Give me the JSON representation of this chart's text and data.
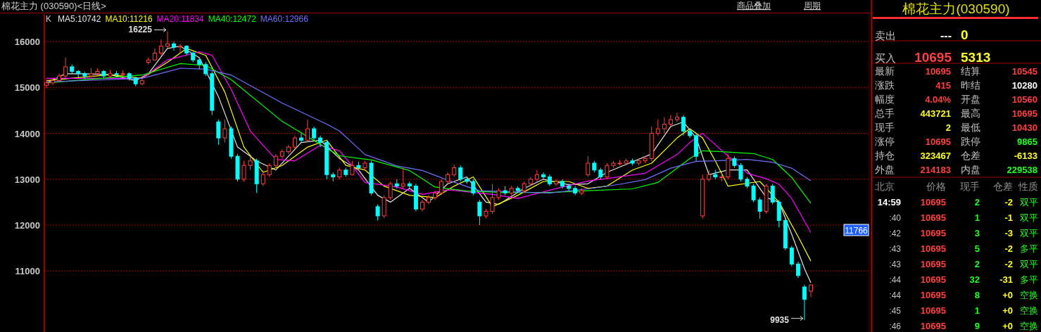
{
  "chart_data": [
    {
      "type": "candlestick",
      "title": "棉花主力 (030590)<日线>",
      "legend_title": "K",
      "legend": "top left",
      "grid": "y",
      "tick_labels": "y",
      "ylim": [
        9700,
        16600
      ],
      "yticks": [
        11000,
        12000,
        13000,
        14000,
        15000,
        16000
      ],
      "categories": [
        null,
        null,
        null,
        null,
        null,
        null,
        null,
        null,
        null,
        null,
        null,
        null,
        null,
        null,
        null,
        null,
        null,
        null,
        null,
        null,
        null,
        null,
        null,
        null,
        null,
        null,
        null,
        null,
        null,
        null,
        null,
        null,
        null,
        null,
        null,
        null,
        null,
        null,
        null,
        null,
        null,
        null,
        null,
        null,
        null,
        null,
        null,
        null,
        null,
        null,
        null,
        null,
        null,
        null,
        null,
        null,
        null,
        null,
        null,
        null,
        null,
        null,
        null,
        null,
        null,
        null,
        null,
        null,
        null,
        null,
        null,
        null,
        null,
        null,
        null,
        null,
        null,
        null,
        null,
        null,
        null,
        null,
        null,
        null,
        null,
        null,
        null,
        null,
        null,
        null,
        null,
        null,
        null,
        null,
        null,
        null,
        null,
        null,
        null,
        null,
        null,
        null,
        null,
        null,
        null,
        null,
        null,
        null,
        null,
        null,
        null,
        null,
        null,
        null,
        null,
        null,
        null,
        null,
        null,
        null,
        null
      ],
      "ohlc": [
        [
          15050,
          15180,
          14980,
          15100
        ],
        [
          15100,
          15200,
          15050,
          15150
        ],
        [
          15150,
          15300,
          15120,
          15250
        ],
        [
          15250,
          15650,
          15200,
          15450
        ],
        [
          15450,
          15500,
          15300,
          15350
        ],
        [
          15350,
          15380,
          15220,
          15300
        ],
        [
          15300,
          15340,
          15180,
          15250
        ],
        [
          15250,
          15420,
          15230,
          15300
        ],
        [
          15300,
          15420,
          15260,
          15350
        ],
        [
          15350,
          15380,
          15200,
          15250
        ],
        [
          15250,
          15380,
          15220,
          15300
        ],
        [
          15300,
          15360,
          15240,
          15280
        ],
        [
          15280,
          15370,
          15250,
          15300
        ],
        [
          15300,
          15330,
          15150,
          15200
        ],
        [
          15200,
          15230,
          15030,
          15080
        ],
        [
          15080,
          15200,
          15050,
          15150
        ],
        [
          15550,
          15650,
          15500,
          15600
        ],
        [
          15600,
          15850,
          15580,
          15750
        ],
        [
          15750,
          16050,
          15700,
          15900
        ],
        [
          15900,
          16225,
          15850,
          15950
        ],
        [
          15950,
          16000,
          15800,
          15880
        ],
        [
          15880,
          15950,
          15750,
          15900
        ],
        [
          15900,
          15920,
          15700,
          15750
        ],
        [
          15750,
          15780,
          15550,
          15600
        ],
        [
          15600,
          15650,
          15400,
          15500
        ],
        [
          15500,
          15550,
          15250,
          15300
        ],
        [
          15300,
          15350,
          14400,
          14500
        ],
        [
          14250,
          14300,
          13750,
          13900
        ],
        [
          13900,
          14300,
          13800,
          14100
        ],
        [
          14100,
          14150,
          13450,
          13500
        ],
        [
          13500,
          13550,
          12950,
          13000
        ],
        [
          13000,
          13400,
          12950,
          13300
        ],
        [
          13300,
          13500,
          13200,
          13400
        ],
        [
          13400,
          13450,
          12700,
          12900
        ],
        [
          12900,
          13200,
          12850,
          13100
        ],
        [
          13100,
          13350,
          13050,
          13300
        ],
        [
          13300,
          13550,
          13250,
          13500
        ],
        [
          13500,
          13650,
          13450,
          13600
        ],
        [
          13600,
          13750,
          13550,
          13700
        ],
        [
          13700,
          13950,
          13650,
          13900
        ],
        [
          13900,
          14000,
          13800,
          13850
        ],
        [
          13850,
          14300,
          13800,
          14100
        ],
        [
          14100,
          14150,
          13850,
          13900
        ],
        [
          13900,
          13950,
          13700,
          13800
        ],
        [
          13800,
          13850,
          13000,
          13100
        ],
        [
          13100,
          13150,
          12950,
          13050
        ],
        [
          13050,
          13250,
          13000,
          13200
        ],
        [
          13200,
          13250,
          13050,
          13100
        ],
        [
          13100,
          13400,
          13080,
          13300
        ],
        [
          13300,
          13380,
          13200,
          13250
        ],
        [
          13250,
          13400,
          13200,
          13350
        ],
        [
          13350,
          13400,
          12650,
          12700
        ],
        [
          12400,
          12450,
          12100,
          12200
        ],
        [
          12200,
          12650,
          12150,
          12600
        ],
        [
          12600,
          12950,
          12550,
          12900
        ],
        [
          12900,
          13000,
          12800,
          12850
        ],
        [
          12850,
          13250,
          12800,
          12900
        ],
        [
          12900,
          12950,
          12800,
          12850
        ],
        [
          12850,
          12900,
          12300,
          12350
        ],
        [
          12350,
          12550,
          12300,
          12500
        ],
        [
          12500,
          12650,
          12450,
          12600
        ],
        [
          12600,
          12750,
          12550,
          12700
        ],
        [
          12700,
          13000,
          12650,
          12950
        ],
        [
          12950,
          13150,
          12900,
          13100
        ],
        [
          13100,
          13320,
          13050,
          13250
        ],
        [
          13250,
          13300,
          12950,
          13000
        ],
        [
          13000,
          13050,
          12900,
          12950
        ],
        [
          12950,
          13000,
          12650,
          12700
        ],
        [
          12500,
          12550,
          12000,
          12200
        ],
        [
          12200,
          12350,
          12150,
          12300
        ],
        [
          12300,
          12900,
          12250,
          12600
        ],
        [
          12600,
          12800,
          12550,
          12750
        ],
        [
          12750,
          12850,
          12650,
          12700
        ],
        [
          12700,
          12850,
          12650,
          12800
        ],
        [
          12800,
          12850,
          12700,
          12750
        ],
        [
          12750,
          12950,
          12700,
          12900
        ],
        [
          12900,
          13050,
          12850,
          13000
        ],
        [
          13000,
          13200,
          12950,
          13100
        ],
        [
          13100,
          13150,
          13000,
          13050
        ],
        [
          13050,
          13100,
          12850,
          12900
        ],
        [
          12900,
          13000,
          12850,
          12950
        ],
        [
          12950,
          13000,
          12800,
          12850
        ],
        [
          12850,
          12900,
          12750,
          12800
        ],
        [
          12800,
          12850,
          12650,
          12700
        ],
        [
          12700,
          12800,
          12650,
          12750
        ],
        [
          13100,
          13500,
          13050,
          13350
        ],
        [
          13350,
          13400,
          13150,
          13200
        ],
        [
          13200,
          13250,
          13000,
          13050
        ],
        [
          13050,
          13350,
          13000,
          13300
        ],
        [
          13300,
          13400,
          13250,
          13350
        ],
        [
          13350,
          13420,
          13300,
          13350
        ],
        [
          13350,
          13450,
          13300,
          13400
        ],
        [
          13400,
          13450,
          13300,
          13350
        ],
        [
          13350,
          13450,
          13300,
          13400
        ],
        [
          13400,
          13500,
          13350,
          13450
        ],
        [
          13450,
          14150,
          13400,
          14000
        ],
        [
          14000,
          14300,
          13950,
          14100
        ],
        [
          14100,
          14350,
          14000,
          14200
        ],
        [
          14200,
          14400,
          14150,
          14300
        ],
        [
          14300,
          14450,
          14250,
          14350
        ],
        [
          14350,
          14400,
          13950,
          14050
        ],
        [
          14050,
          14100,
          13900,
          13950
        ],
        [
          13950,
          14000,
          13400,
          13500
        ],
        [
          12200,
          13100,
          12140,
          13000
        ],
        [
          13000,
          13200,
          12950,
          13100
        ],
        [
          13100,
          13200,
          13000,
          13050
        ],
        [
          13050,
          13150,
          12950,
          13050
        ],
        [
          13050,
          13550,
          13000,
          13450
        ],
        [
          13450,
          13500,
          13250,
          13300
        ],
        [
          13300,
          13350,
          12950,
          13000
        ],
        [
          13000,
          13050,
          12800,
          12850
        ],
        [
          12850,
          12900,
          12500,
          12550
        ],
        [
          12550,
          12600,
          12140,
          12300
        ],
        [
          12300,
          12900,
          12250,
          12850
        ],
        [
          12850,
          12900,
          12450,
          12500
        ],
        [
          12500,
          12550,
          11950,
          12100
        ],
        [
          12100,
          12150,
          11450,
          11500
        ],
        [
          11500,
          11550,
          11100,
          11150
        ],
        [
          11150,
          11200,
          10850,
          10900
        ],
        [
          10650,
          10700,
          9935,
          10380
        ],
        [
          10560,
          10695,
          10430,
          10695
        ]
      ],
      "series": [
        {
          "name": "MA5:10742",
          "type": "line",
          "color": "#e6e6e6",
          "values": [
            15100,
            null,
            null,
            15300,
            null,
            null,
            15300,
            null,
            null,
            null,
            15280,
            null,
            null,
            null,
            15150,
            null,
            15300,
            null,
            null,
            15850,
            null,
            15900,
            null,
            null,
            15650,
            null,
            null,
            14800,
            null,
            null,
            13700,
            null,
            null,
            13400,
            null,
            null,
            13200,
            null,
            null,
            null,
            13800,
            null,
            null,
            13850,
            null,
            null,
            13450,
            null,
            null,
            13200,
            null,
            null,
            12650,
            null,
            12500,
            null,
            null,
            12800,
            null,
            null,
            12500,
            null,
            null,
            12900,
            null,
            null,
            13050,
            null,
            null,
            12500,
            null,
            12450,
            null,
            null,
            null,
            12800,
            null,
            null,
            13000,
            null,
            null,
            null,
            12880,
            null,
            null,
            12900,
            null,
            null,
            13150,
            null,
            null,
            null,
            13380,
            null,
            null,
            13550,
            null,
            null,
            14150,
            null,
            14250,
            null,
            13900,
            null,
            13100,
            null,
            null,
            13200,
            null,
            null,
            13200,
            null,
            null,
            12600,
            null,
            12500,
            null,
            11800,
            null,
            11050,
            10742
          ]
        },
        {
          "name": "MA10:11216",
          "type": "line",
          "color": "#ffff00",
          "values": [
            15150,
            null,
            null,
            null,
            null,
            null,
            null,
            null,
            null,
            null,
            15280,
            null,
            null,
            null,
            null,
            15200,
            null,
            null,
            null,
            15550,
            null,
            null,
            15850,
            null,
            null,
            15700,
            null,
            null,
            14900,
            null,
            null,
            13700,
            null,
            null,
            13150,
            null,
            null,
            13300,
            null,
            null,
            null,
            13700,
            null,
            null,
            13850,
            null,
            null,
            13300,
            null,
            null,
            13200,
            null,
            null,
            12850,
            null,
            null,
            null,
            12650,
            null,
            null,
            null,
            12600,
            null,
            null,
            12850,
            null,
            null,
            13050,
            null,
            null,
            12400,
            null,
            null,
            null,
            12650,
            null,
            null,
            null,
            12950,
            null,
            null,
            null,
            12950,
            null,
            null,
            12800,
            null,
            null,
            12850,
            null,
            null,
            null,
            13200,
            null,
            null,
            13350,
            null,
            null,
            null,
            13900,
            null,
            14100,
            null,
            13900,
            null,
            13400,
            null,
            12850,
            null,
            null,
            null,
            null,
            12950,
            null,
            null,
            12500,
            null,
            null,
            11750,
            null,
            11216
          ]
        },
        {
          "name": "MA20:11834",
          "type": "line",
          "color": "#ff00ff",
          "values": [
            15200,
            null,
            null,
            null,
            null,
            null,
            null,
            null,
            null,
            null,
            null,
            null,
            null,
            null,
            null,
            15200,
            null,
            null,
            null,
            15600,
            null,
            null,
            null,
            null,
            15780,
            null,
            15700,
            null,
            null,
            14960,
            null,
            null,
            14050,
            null,
            null,
            null,
            13430,
            null,
            null,
            13400,
            null,
            null,
            null,
            13740,
            null,
            null,
            13620,
            null,
            13290,
            null,
            12930,
            null,
            null,
            null,
            null,
            12830,
            null,
            null,
            null,
            12670,
            null,
            null,
            null,
            12770,
            null,
            null,
            null,
            null,
            null,
            null,
            12670,
            null,
            null,
            null,
            12580,
            null,
            null,
            null,
            null,
            null,
            null,
            12830,
            null,
            null,
            null,
            12960,
            null,
            null,
            null,
            null,
            null,
            null,
            null,
            null,
            13130,
            null,
            null,
            null,
            null,
            13540,
            null,
            13800,
            null,
            14000,
            null,
            null,
            13630,
            null,
            null,
            null,
            13130,
            null,
            null,
            13010,
            null,
            12890,
            null,
            12580,
            null,
            null,
            11834
          ]
        },
        {
          "name": "MA40:12472",
          "type": "line",
          "color": "#00ff00",
          "values": [
            15100,
            null,
            null,
            null,
            null,
            null,
            null,
            null,
            null,
            null,
            null,
            null,
            null,
            null,
            null,
            15270,
            null,
            null,
            null,
            null,
            null,
            15520,
            null,
            null,
            null,
            15480,
            null,
            null,
            null,
            15170,
            null,
            null,
            null,
            null,
            null,
            null,
            null,
            14260,
            null,
            null,
            null,
            null,
            null,
            null,
            null,
            13590,
            13510,
            null,
            null,
            null,
            null,
            13420,
            null,
            null,
            null,
            null,
            null,
            13190,
            null,
            null,
            null,
            12830,
            null,
            null,
            null,
            null,
            12740,
            null,
            null,
            null,
            null,
            null,
            12710,
            null,
            null,
            null,
            null,
            null,
            null,
            12710,
            null,
            null,
            null,
            null,
            null,
            12750,
            null,
            null,
            null,
            null,
            null,
            null,
            12790,
            null,
            null,
            null,
            12930,
            null,
            null,
            null,
            null,
            13450,
            null,
            13620,
            null,
            null,
            13600,
            null,
            null,
            null,
            null,
            13560,
            null,
            null,
            13430,
            null,
            null,
            13040,
            null,
            null,
            12472
          ]
        },
        {
          "name": "MA60:12966",
          "type": "line",
          "color": "#6f6fff",
          "values": [
            15120,
            null,
            null,
            null,
            null,
            null,
            null,
            null,
            null,
            null,
            null,
            null,
            null,
            null,
            null,
            15200,
            null,
            null,
            null,
            null,
            null,
            15420,
            null,
            null,
            null,
            15400,
            null,
            null,
            null,
            15270,
            null,
            null,
            null,
            null,
            null,
            null,
            null,
            14660,
            null,
            null,
            null,
            null,
            null,
            null,
            14200,
            null,
            14050,
            null,
            null,
            null,
            13540,
            null,
            null,
            null,
            null,
            13290,
            null,
            null,
            null,
            13190,
            null,
            null,
            null,
            12980,
            null,
            null,
            null,
            null,
            12750,
            null,
            null,
            null,
            12730,
            null,
            null,
            null,
            null,
            null,
            null,
            12700,
            null,
            null,
            null,
            null,
            null,
            12790,
            null,
            null,
            null,
            null,
            12890,
            null,
            null,
            null,
            12990,
            null,
            null,
            null,
            13240,
            null,
            null,
            null,
            13390,
            null,
            null,
            13400,
            null,
            null,
            null,
            null,
            13430,
            null,
            null,
            null,
            13370,
            null,
            null,
            13240,
            null,
            null,
            12966
          ]
        }
      ],
      "annotations": [
        "16225",
        "9935",
        "11766",
        "商品叠加",
        "周期"
      ]
    },
    {
      "type": "other",
      "title": "棉花主力(030590)",
      "annotations": [
        "卖出",
        "---",
        "0",
        "买入",
        "10695",
        "5313",
        "最新",
        "10695",
        "结算",
        "10545",
        "涨跌",
        "415",
        "昨结",
        "10280",
        "幅度",
        "4.04%",
        "开盘",
        "10560",
        "总手",
        "443721",
        "最高",
        "10695",
        "现手",
        "2",
        "最低",
        "10430",
        "涨停",
        "10695",
        "跌停",
        "9865",
        "持仓",
        "323467",
        "仓差",
        "-6133",
        "外盘",
        "214183",
        "内盘",
        "229538",
        "北京",
        "价格",
        "现手",
        "仓差",
        "性质",
        "14:59",
        "10695",
        "2",
        "-2",
        "双平",
        ":40",
        "10695",
        "1",
        "-1",
        "双平",
        ":42",
        "10695",
        "3",
        "-3",
        "双平",
        ":43",
        "10695",
        "5",
        "-2",
        "多平",
        ":43",
        "10695",
        "2",
        "-2",
        "双平",
        ":44",
        "10695",
        "32",
        "-31",
        "多平",
        ":44",
        "10695",
        "8",
        "+0",
        "空换",
        ":45",
        "10695",
        "1",
        "+0",
        "空换",
        ":46",
        "10695",
        "9",
        "+0",
        "空换"
      ]
    }
  ]
}
